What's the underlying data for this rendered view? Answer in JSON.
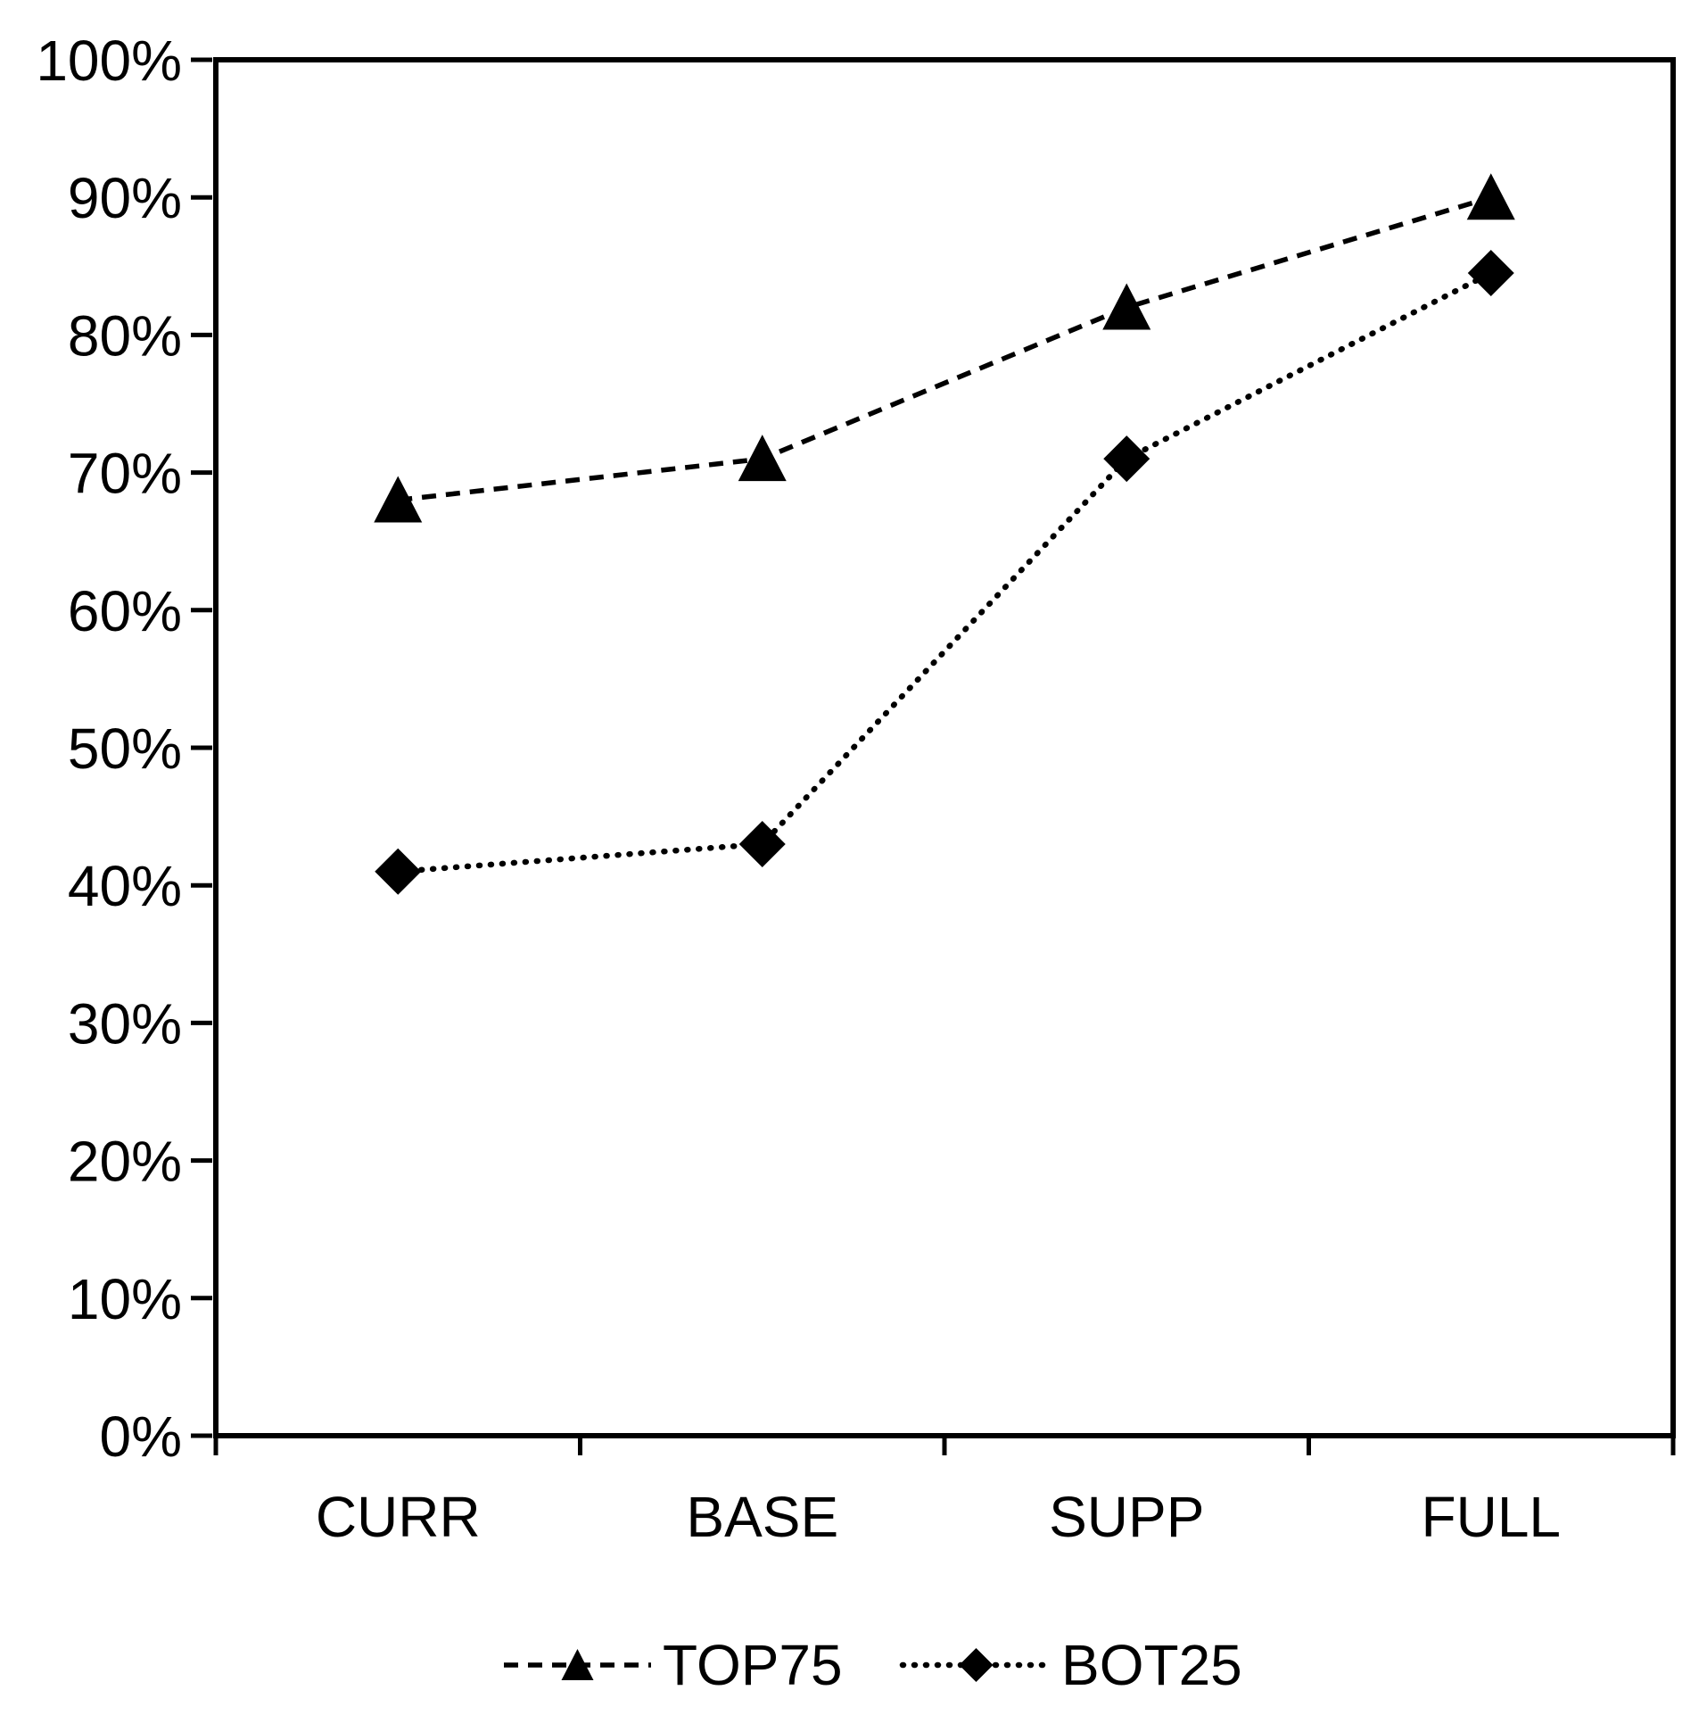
{
  "chart_data": {
    "type": "line",
    "categories": [
      "CURR",
      "BASE",
      "SUPP",
      "FULL"
    ],
    "series": [
      {
        "name": "TOP75",
        "marker": "triangle",
        "line_style": "dashed",
        "values": [
          68,
          71,
          82,
          90
        ]
      },
      {
        "name": "BOT25",
        "marker": "diamond",
        "line_style": "dotted",
        "values": [
          41,
          43,
          71,
          84.5
        ]
      }
    ],
    "title": "",
    "xlabel": "",
    "ylabel": "",
    "y_axis": {
      "min": 0,
      "max": 100,
      "step": 10,
      "tick_labels": [
        "0%",
        "10%",
        "20%",
        "30%",
        "40%",
        "50%",
        "60%",
        "70%",
        "80%",
        "90%",
        "100%"
      ]
    },
    "grid": false,
    "legend_position": "bottom",
    "colors": {
      "foreground": "#000000",
      "background": "#ffffff"
    }
  },
  "legend": {
    "items": [
      {
        "label": "TOP75",
        "marker": "triangle-marker-icon",
        "line": "dashed"
      },
      {
        "label": "BOT25",
        "marker": "diamond-marker-icon",
        "line": "dotted"
      }
    ]
  }
}
